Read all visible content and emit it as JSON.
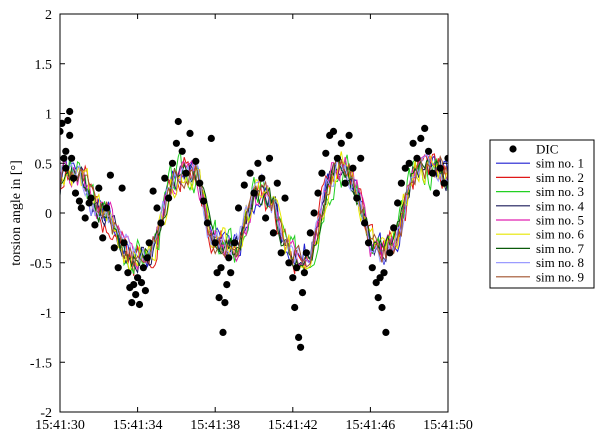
{
  "chart_data": {
    "type": "scatter",
    "title": "",
    "xlabel": "",
    "ylabel": "torsion angle in [°]",
    "xlim": [
      "15:41:30",
      "15:41:50"
    ],
    "ylim": [
      -2,
      2
    ],
    "xticks": [
      "15:41:30",
      "15:41:34",
      "15:41:38",
      "15:41:42",
      "15:41:46",
      "15:41:50"
    ],
    "yticks": [
      -2,
      -1.5,
      -1,
      -0.5,
      0,
      0.5,
      1,
      1.5,
      2
    ],
    "grid": false,
    "legend_position": "outside-right",
    "colors": {
      "DIC": "#000000",
      "sim no. 1": "#1f1fd0",
      "sim no. 2": "#e01818",
      "sim no. 3": "#22d022",
      "sim no. 4": "#1a1a5a",
      "sim no. 5": "#e020b0",
      "sim no. 6": "#e6e600",
      "sim no. 7": "#0a5a0a",
      "sim no. 8": "#9b9bff",
      "sim no. 9": "#a0522d"
    },
    "series": [
      {
        "name": "DIC",
        "kind": "scatter",
        "points": [
          [
            "15:41:30.0",
            0.82
          ],
          [
            "15:41:30.1",
            0.9
          ],
          [
            "15:41:30.2",
            0.55
          ],
          [
            "15:41:30.3",
            0.45
          ],
          [
            "15:41:30.3",
            0.62
          ],
          [
            "15:41:30.4",
            0.93
          ],
          [
            "15:41:30.5",
            0.78
          ],
          [
            "15:41:30.5",
            1.02
          ],
          [
            "15:41:30.6",
            0.55
          ],
          [
            "15:41:30.7",
            0.35
          ],
          [
            "15:41:30.8",
            0.2
          ],
          [
            "15:41:31.0",
            0.12
          ],
          [
            "15:41:31.1",
            0.05
          ],
          [
            "15:41:31.3",
            -0.05
          ],
          [
            "15:41:31.5",
            0.1
          ],
          [
            "15:41:31.6",
            0.15
          ],
          [
            "15:41:31.8",
            -0.12
          ],
          [
            "15:41:32.0",
            0.25
          ],
          [
            "15:41:32.2",
            -0.25
          ],
          [
            "15:41:32.4",
            0.05
          ],
          [
            "15:41:32.6",
            0.38
          ],
          [
            "15:41:32.8",
            -0.35
          ],
          [
            "15:41:33.0",
            -0.55
          ],
          [
            "15:41:33.2",
            0.25
          ],
          [
            "15:41:33.3",
            -0.3
          ],
          [
            "15:41:33.5",
            -0.6
          ],
          [
            "15:41:33.6",
            -0.75
          ],
          [
            "15:41:33.7",
            -0.9
          ],
          [
            "15:41:33.8",
            -0.72
          ],
          [
            "15:41:33.9",
            -0.82
          ],
          [
            "15:41:34.0",
            -0.65
          ],
          [
            "15:41:34.1",
            -0.92
          ],
          [
            "15:41:34.2",
            -0.7
          ],
          [
            "15:41:34.3",
            -0.55
          ],
          [
            "15:41:34.4",
            -0.78
          ],
          [
            "15:41:34.5",
            -0.45
          ],
          [
            "15:41:34.6",
            -0.3
          ],
          [
            "15:41:34.8",
            0.22
          ],
          [
            "15:41:35.0",
            0.05
          ],
          [
            "15:41:35.2",
            -0.1
          ],
          [
            "15:41:35.4",
            0.35
          ],
          [
            "15:41:35.6",
            0.15
          ],
          [
            "15:41:35.8",
            0.5
          ],
          [
            "15:41:36.0",
            0.7
          ],
          [
            "15:41:36.1",
            0.92
          ],
          [
            "15:41:36.3",
            0.62
          ],
          [
            "15:41:36.5",
            0.4
          ],
          [
            "15:41:36.7",
            0.8
          ],
          [
            "15:41:37.0",
            0.52
          ],
          [
            "15:41:37.2",
            0.3
          ],
          [
            "15:41:37.4",
            0.12
          ],
          [
            "15:41:37.6",
            -0.1
          ],
          [
            "15:41:37.8",
            0.75
          ],
          [
            "15:41:38.0",
            -0.3
          ],
          [
            "15:41:38.1",
            -0.6
          ],
          [
            "15:41:38.2",
            -0.85
          ],
          [
            "15:41:38.3",
            -0.55
          ],
          [
            "15:41:38.4",
            -1.2
          ],
          [
            "15:41:38.5",
            -0.9
          ],
          [
            "15:41:38.6",
            -0.72
          ],
          [
            "15:41:38.7",
            -0.45
          ],
          [
            "15:41:38.8",
            -0.6
          ],
          [
            "15:41:39.0",
            -0.3
          ],
          [
            "15:41:39.2",
            0.05
          ],
          [
            "15:41:39.5",
            0.28
          ],
          [
            "15:41:39.8",
            0.4
          ],
          [
            "15:41:40.0",
            0.2
          ],
          [
            "15:41:40.2",
            0.5
          ],
          [
            "15:41:40.4",
            0.35
          ],
          [
            "15:41:40.6",
            -0.05
          ],
          [
            "15:41:40.8",
            0.55
          ],
          [
            "15:41:41.0",
            -0.2
          ],
          [
            "15:41:41.2",
            0.3
          ],
          [
            "15:41:41.4",
            -0.4
          ],
          [
            "15:41:41.6",
            0.15
          ],
          [
            "15:41:41.8",
            -0.5
          ],
          [
            "15:41:42.0",
            -0.65
          ],
          [
            "15:41:42.1",
            -0.95
          ],
          [
            "15:41:42.2",
            -0.55
          ],
          [
            "15:41:42.3",
            -1.25
          ],
          [
            "15:41:42.4",
            -1.35
          ],
          [
            "15:41:42.5",
            -0.8
          ],
          [
            "15:41:42.6",
            -0.6
          ],
          [
            "15:41:42.7",
            -0.4
          ],
          [
            "15:41:42.9",
            -0.2
          ],
          [
            "15:41:43.1",
            0.0
          ],
          [
            "15:41:43.3",
            0.2
          ],
          [
            "15:41:43.5",
            0.4
          ],
          [
            "15:41:43.7",
            0.6
          ],
          [
            "15:41:43.9",
            0.78
          ],
          [
            "15:41:44.1",
            0.82
          ],
          [
            "15:41:44.3",
            0.55
          ],
          [
            "15:41:44.5",
            0.7
          ],
          [
            "15:41:44.7",
            0.3
          ],
          [
            "15:41:44.9",
            0.78
          ],
          [
            "15:41:45.1",
            0.45
          ],
          [
            "15:41:45.3",
            0.15
          ],
          [
            "15:41:45.5",
            0.55
          ],
          [
            "15:41:45.7",
            -0.1
          ],
          [
            "15:41:45.9",
            -0.3
          ],
          [
            "15:41:46.1",
            -0.55
          ],
          [
            "15:41:46.3",
            -0.7
          ],
          [
            "15:41:46.4",
            -0.85
          ],
          [
            "15:41:46.5",
            -0.65
          ],
          [
            "15:41:46.6",
            -0.95
          ],
          [
            "15:41:46.7",
            -0.6
          ],
          [
            "15:41:46.8",
            -1.2
          ],
          [
            "15:41:47.0",
            -0.4
          ],
          [
            "15:41:47.2",
            -0.15
          ],
          [
            "15:41:47.4",
            0.1
          ],
          [
            "15:41:47.6",
            0.3
          ],
          [
            "15:41:47.8",
            0.45
          ],
          [
            "15:41:48.0",
            0.5
          ],
          [
            "15:41:48.2",
            0.7
          ],
          [
            "15:41:48.4",
            0.55
          ],
          [
            "15:41:48.6",
            0.75
          ],
          [
            "15:41:48.8",
            0.85
          ],
          [
            "15:41:49.0",
            0.62
          ],
          [
            "15:41:49.2",
            0.4
          ],
          [
            "15:41:49.4",
            0.2
          ],
          [
            "15:41:49.6",
            0.45
          ],
          [
            "15:41:49.8",
            0.3
          ],
          [
            "15:41:50.0",
            0.55
          ]
        ]
      },
      {
        "name": "sim no. 1",
        "kind": "line",
        "amp": 0.22,
        "seed": 1
      },
      {
        "name": "sim no. 2",
        "kind": "line",
        "amp": 0.28,
        "seed": 2
      },
      {
        "name": "sim no. 3",
        "kind": "line",
        "amp": 0.3,
        "seed": 3
      },
      {
        "name": "sim no. 4",
        "kind": "line",
        "amp": 0.2,
        "seed": 4
      },
      {
        "name": "sim no. 5",
        "kind": "line",
        "amp": 0.24,
        "seed": 5
      },
      {
        "name": "sim no. 6",
        "kind": "line",
        "amp": 0.26,
        "seed": 6
      },
      {
        "name": "sim no. 7",
        "kind": "line",
        "amp": 0.2,
        "seed": 7
      },
      {
        "name": "sim no. 8",
        "kind": "line",
        "amp": 0.23,
        "seed": 8
      },
      {
        "name": "sim no. 9",
        "kind": "line",
        "amp": 0.21,
        "seed": 9
      }
    ]
  }
}
